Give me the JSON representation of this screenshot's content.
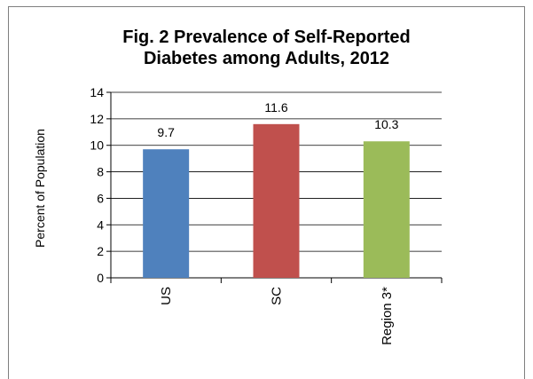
{
  "chart_data": {
    "type": "bar",
    "title_lines": [
      "Fig. 2  Prevalence of Self-Reported",
      "Diabetes among Adults,  2012"
    ],
    "ylabel": "Percent of Population",
    "xlabel": "",
    "categories": [
      "US",
      "SC",
      "Region 3*"
    ],
    "values": [
      9.7,
      11.6,
      10.3
    ],
    "data_labels": [
      "9.7",
      "11.6",
      "10.3"
    ],
    "ylim": [
      0,
      14
    ],
    "yticks": [
      0,
      2,
      4,
      6,
      8,
      10,
      12,
      14
    ],
    "grid": true,
    "legend": "none",
    "colors": [
      "#4f81bd",
      "#c0504d",
      "#9bbb59"
    ]
  }
}
